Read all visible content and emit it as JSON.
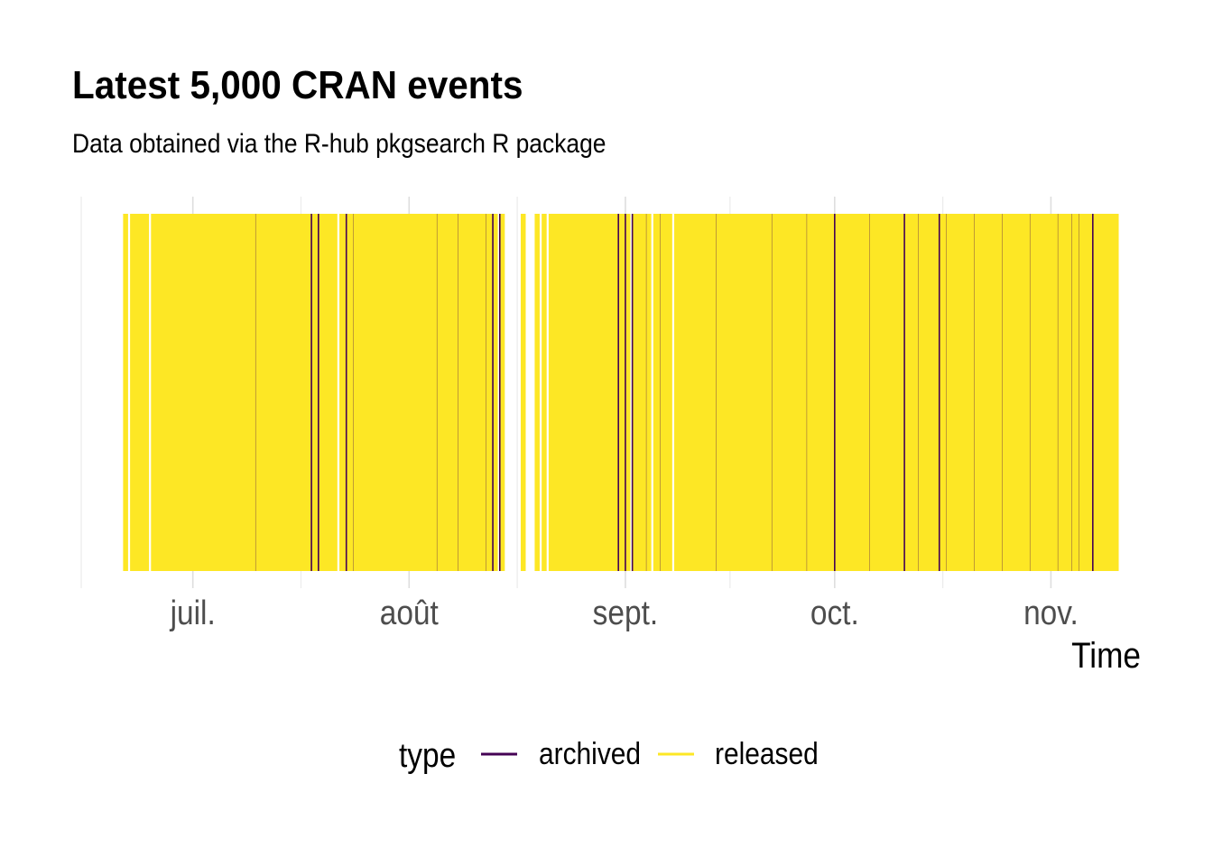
{
  "chart_data": {
    "type": "timeline-events",
    "title": "Latest 5,000 CRAN events",
    "subtitle": "Data obtained via the R-hub pkgsearch R package",
    "xlabel": "Time",
    "ylabel": "",
    "x_tick_labels": [
      {
        "label": "juil.",
        "date": "2019-07-01"
      },
      {
        "label": "août",
        "date": "2019-08-01"
      },
      {
        "label": "sept.",
        "date": "2019-09-01"
      },
      {
        "label": "oct.",
        "date": "2019-10-01"
      },
      {
        "label": "nov.",
        "date": "2019-11-01"
      }
    ],
    "xlim": [
      "2019-06-15",
      "2019-11-10"
    ],
    "grid": true,
    "legend": {
      "title": "type",
      "position": "bottom",
      "entries": [
        {
          "name": "archived",
          "color": "#440154"
        },
        {
          "name": "released",
          "color": "#fde725"
        }
      ]
    },
    "colors": {
      "archived": "#440154",
      "released": "#fde725"
    },
    "released_periods": [
      [
        "2019-06-21",
        "2019-06-22"
      ],
      [
        "2019-06-22",
        "2019-06-25"
      ],
      [
        "2019-06-25",
        "2019-07-22"
      ],
      [
        "2019-07-22",
        "2019-08-14"
      ],
      [
        "2019-08-14",
        "2019-08-15"
      ],
      [
        "2019-08-17",
        "2019-08-18"
      ],
      [
        "2019-08-19",
        "2019-08-20"
      ],
      [
        "2019-08-20",
        "2019-08-21"
      ],
      [
        "2019-08-21",
        "2019-09-02"
      ],
      [
        "2019-09-02",
        "2019-09-05"
      ],
      [
        "2019-09-05",
        "2019-09-08"
      ],
      [
        "2019-09-08",
        "2019-11-11"
      ]
    ],
    "archived_events": [
      "2019-07-18",
      "2019-07-19",
      "2019-07-23",
      "2019-08-13",
      "2019-08-14",
      "2019-08-31",
      "2019-09-01",
      "2019-09-02",
      "2019-10-01",
      "2019-10-11",
      "2019-10-16",
      "2019-11-07"
    ],
    "minor_archived_events": [
      "2019-07-10",
      "2019-07-24",
      "2019-08-05",
      "2019-08-08",
      "2019-08-12",
      "2019-09-04",
      "2019-09-06",
      "2019-09-14",
      "2019-09-22",
      "2019-09-27",
      "2019-10-06",
      "2019-10-13",
      "2019-10-17",
      "2019-10-21",
      "2019-10-25",
      "2019-10-29",
      "2019-11-02",
      "2019-11-04",
      "2019-11-05"
    ]
  }
}
